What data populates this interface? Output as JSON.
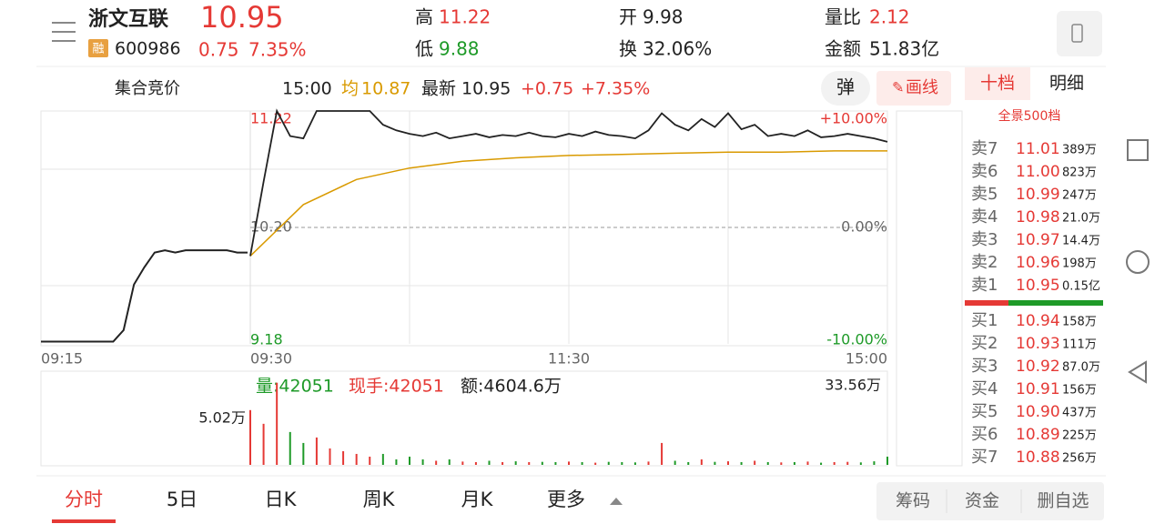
{
  "header": {
    "name": "浙文互联",
    "tag": "融",
    "code": "600986",
    "price": "10.95",
    "change": "0.75",
    "change_pct": "7.35%",
    "high_label": "高",
    "high": "11.22",
    "low_label": "低",
    "low": "9.88",
    "open_label": "开",
    "open": "9.98",
    "turnover_label": "换",
    "turnover": "32.06%",
    "vol_ratio_label": "量比",
    "vol_ratio": "2.12",
    "amount_label": "金额",
    "amount": "51.83亿"
  },
  "info_bar": {
    "auction": "集合竞价",
    "time": "15:00",
    "avg_label": "均",
    "avg": "10.87",
    "latest_label": "最新",
    "latest": "10.95",
    "change": "+0.75",
    "change_pct": "+7.35%",
    "popup": "弹",
    "draw": "画线"
  },
  "intraday": {
    "ylim": [
      9.18,
      11.22
    ],
    "price_labels": [
      "11.22",
      "10.20",
      "9.18"
    ],
    "pct_labels": [
      "+10.00%",
      "0.00%",
      "-10.00%"
    ],
    "time_labels": [
      "09:15",
      "09:30",
      "11:30",
      "15:00"
    ],
    "auction": [
      9.2,
      9.2,
      9.2,
      9.2,
      9.2,
      9.2,
      9.2,
      9.2,
      9.3,
      9.7,
      9.85,
      9.98,
      10.0,
      9.98,
      10.0,
      10.0,
      10.0,
      10.0,
      10.0,
      9.98,
      9.98
    ],
    "price": [
      9.95,
      10.6,
      11.22,
      11.0,
      10.98,
      11.22,
      11.22,
      11.22,
      11.22,
      11.22,
      11.1,
      11.05,
      11.02,
      11.0,
      11.03,
      10.98,
      11.0,
      11.02,
      10.99,
      11.01,
      11.0,
      11.03,
      11.0,
      10.99,
      11.02,
      11.0,
      11.04,
      11.01,
      11.0,
      10.98,
      11.05,
      11.2,
      11.1,
      11.05,
      11.15,
      11.08,
      11.2,
      11.06,
      11.1,
      11.0,
      11.02,
      11.0,
      11.05,
      10.99,
      11.0,
      11.02,
      11.0,
      10.98,
      10.95
    ],
    "avg": [
      9.95,
      10.4,
      10.62,
      10.72,
      10.78,
      10.81,
      10.83,
      10.84,
      10.85,
      10.86,
      10.86,
      10.87,
      10.87
    ],
    "volume_info": {
      "vol": "量:42051",
      "hand": "现手:42051",
      "amount": "额:4604.6万",
      "max": "33.56万",
      "auction_max": "5.02万"
    },
    "vlim": [
      0,
      33.56
    ],
    "volume": [
      20,
      15,
      30,
      12,
      8,
      10,
      6,
      5,
      4,
      3,
      4,
      2,
      3,
      2,
      1.5,
      2,
      1.2,
      1,
      1.5,
      1,
      1.3,
      1,
      1.1,
      1,
      1.2,
      1,
      0.8,
      1.1,
      1,
      0.9,
      1.2,
      8,
      1.5,
      1,
      2,
      1.1,
      1.3,
      1,
      1.5,
      1,
      0.9,
      1,
      1.2,
      0.8,
      1,
      1.1,
      0.9,
      1.3,
      3
    ]
  },
  "order_book": {
    "tabs": [
      "十档",
      "明细"
    ],
    "full": "全景500档",
    "asks": [
      {
        "label": "卖7",
        "price": "11.01",
        "vol": "389万"
      },
      {
        "label": "卖6",
        "price": "11.00",
        "vol": "823万"
      },
      {
        "label": "卖5",
        "price": "10.99",
        "vol": "247万"
      },
      {
        "label": "卖4",
        "price": "10.98",
        "vol": "21.0万"
      },
      {
        "label": "卖3",
        "price": "10.97",
        "vol": "14.4万"
      },
      {
        "label": "卖2",
        "price": "10.96",
        "vol": "198万"
      },
      {
        "label": "卖1",
        "price": "10.95",
        "vol": "0.15亿"
      }
    ],
    "bids": [
      {
        "label": "买1",
        "price": "10.94",
        "vol": "158万"
      },
      {
        "label": "买2",
        "price": "10.93",
        "vol": "111万"
      },
      {
        "label": "买3",
        "price": "10.92",
        "vol": "87.0万"
      },
      {
        "label": "买4",
        "price": "10.91",
        "vol": "156万"
      },
      {
        "label": "买5",
        "price": "10.90",
        "vol": "437万"
      },
      {
        "label": "买6",
        "price": "10.89",
        "vol": "225万"
      },
      {
        "label": "买7",
        "price": "10.88",
        "vol": "256万"
      }
    ]
  },
  "bottom_tabs": [
    "分时",
    "5日",
    "日K",
    "周K",
    "月K",
    "更多"
  ],
  "bottom_buttons": [
    "筹码",
    "资金",
    "删自选"
  ]
}
